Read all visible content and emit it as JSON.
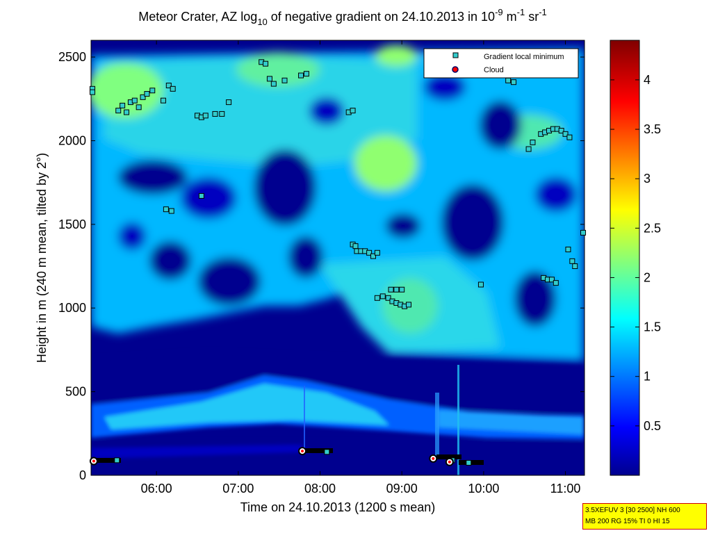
{
  "chart_data": {
    "type": "heatmap",
    "title": {
      "prefix": "Meteor Crater, AZ log",
      "sub": "10",
      "middle": " of negative gradient on 24.10.2013 in 10",
      "exp1": "-9",
      "unit1": " m",
      "exp2": "-1",
      "unit2": " sr",
      "exp3": "-1"
    },
    "xlabel": "Time on 24.10.2013 (1200 s mean)",
    "ylabel": "Height in m (240 m mean, tilted by 2°)",
    "xlim": [
      "05:12",
      "11:14"
    ],
    "ylim": [
      0,
      2600
    ],
    "x_ticks": [
      "06:00",
      "07:00",
      "08:00",
      "09:00",
      "10:00",
      "11:00"
    ],
    "y_ticks": [
      "0",
      "500",
      "1000",
      "1500",
      "2000",
      "2500"
    ],
    "colorbar": {
      "range": [
        0,
        4.4
      ],
      "ticks": [
        "0.5",
        "1",
        "1.5",
        "2",
        "2.5",
        "3",
        "3.5",
        "4"
      ],
      "colormap": "jet"
    },
    "legend": {
      "position": "top-right",
      "entries": [
        {
          "label": "Gradient local minimum",
          "marker": "square",
          "color": "#33cccc"
        },
        {
          "label": "Cloud",
          "marker": "circle",
          "color": "#ff0000"
        }
      ]
    },
    "gradient_minima": [
      {
        "x": "05:13",
        "y": 2310
      },
      {
        "x": "05:13",
        "y": 2290
      },
      {
        "x": "05:32",
        "y": 2180
      },
      {
        "x": "05:35",
        "y": 2210
      },
      {
        "x": "05:38",
        "y": 2170
      },
      {
        "x": "05:41",
        "y": 2230
      },
      {
        "x": "05:44",
        "y": 2240
      },
      {
        "x": "05:47",
        "y": 2200
      },
      {
        "x": "05:50",
        "y": 2260
      },
      {
        "x": "05:53",
        "y": 2280
      },
      {
        "x": "05:57",
        "y": 2300
      },
      {
        "x": "06:05",
        "y": 2240
      },
      {
        "x": "06:09",
        "y": 2330
      },
      {
        "x": "06:12",
        "y": 2310
      },
      {
        "x": "06:30",
        "y": 2150
      },
      {
        "x": "06:33",
        "y": 2140
      },
      {
        "x": "06:36",
        "y": 2150
      },
      {
        "x": "06:43",
        "y": 2160
      },
      {
        "x": "06:48",
        "y": 2160
      },
      {
        "x": "06:53",
        "y": 2230
      },
      {
        "x": "06:33",
        "y": 1670
      },
      {
        "x": "06:07",
        "y": 1590
      },
      {
        "x": "06:11",
        "y": 1580
      },
      {
        "x": "07:17",
        "y": 2470
      },
      {
        "x": "07:20",
        "y": 2460
      },
      {
        "x": "07:23",
        "y": 2370
      },
      {
        "x": "07:26",
        "y": 2340
      },
      {
        "x": "07:34",
        "y": 2360
      },
      {
        "x": "07:46",
        "y": 2390
      },
      {
        "x": "07:50",
        "y": 2400
      },
      {
        "x": "08:21",
        "y": 2170
      },
      {
        "x": "08:24",
        "y": 2180
      },
      {
        "x": "08:24",
        "y": 1380
      },
      {
        "x": "08:26",
        "y": 1370
      },
      {
        "x": "08:27",
        "y": 1340
      },
      {
        "x": "08:30",
        "y": 1340
      },
      {
        "x": "08:33",
        "y": 1340
      },
      {
        "x": "08:36",
        "y": 1330
      },
      {
        "x": "08:39",
        "y": 1310
      },
      {
        "x": "08:42",
        "y": 1330
      },
      {
        "x": "08:42",
        "y": 1060
      },
      {
        "x": "08:46",
        "y": 1070
      },
      {
        "x": "08:50",
        "y": 1060
      },
      {
        "x": "08:53",
        "y": 1040
      },
      {
        "x": "08:56",
        "y": 1030
      },
      {
        "x": "08:59",
        "y": 1020
      },
      {
        "x": "09:02",
        "y": 1010
      },
      {
        "x": "09:05",
        "y": 1020
      },
      {
        "x": "08:52",
        "y": 1110
      },
      {
        "x": "08:56",
        "y": 1110
      },
      {
        "x": "09:00",
        "y": 1110
      },
      {
        "x": "09:58",
        "y": 1140
      },
      {
        "x": "10:18",
        "y": 2360
      },
      {
        "x": "10:22",
        "y": 2350
      },
      {
        "x": "10:33",
        "y": 1950
      },
      {
        "x": "10:36",
        "y": 1990
      },
      {
        "x": "10:42",
        "y": 2040
      },
      {
        "x": "10:45",
        "y": 2050
      },
      {
        "x": "10:48",
        "y": 2060
      },
      {
        "x": "10:51",
        "y": 2070
      },
      {
        "x": "10:54",
        "y": 2070
      },
      {
        "x": "10:57",
        "y": 2060
      },
      {
        "x": "11:00",
        "y": 2040
      },
      {
        "x": "11:03",
        "y": 2020
      },
      {
        "x": "10:44",
        "y": 1180
      },
      {
        "x": "10:47",
        "y": 1170
      },
      {
        "x": "10:50",
        "y": 1170
      },
      {
        "x": "10:53",
        "y": 1150
      },
      {
        "x": "11:02",
        "y": 1350
      },
      {
        "x": "11:05",
        "y": 1280
      },
      {
        "x": "11:07",
        "y": 1250
      },
      {
        "x": "11:13",
        "y": 1450
      },
      {
        "x": "05:31",
        "y": 90
      },
      {
        "x": "08:05",
        "y": 140
      },
      {
        "x": "09:37",
        "y": 90
      },
      {
        "x": "09:49",
        "y": 75
      }
    ],
    "clouds": [
      {
        "x": "05:14",
        "y": 85
      },
      {
        "x": "07:47",
        "y": 145
      },
      {
        "x": "09:23",
        "y": 100
      },
      {
        "x": "09:35",
        "y": 80
      }
    ]
  },
  "info_box": {
    "line1": "3.5XEFUV 3 [30 2500] NH 600",
    "line2": "MB 200 RG 15% TI 0 HI 15"
  }
}
